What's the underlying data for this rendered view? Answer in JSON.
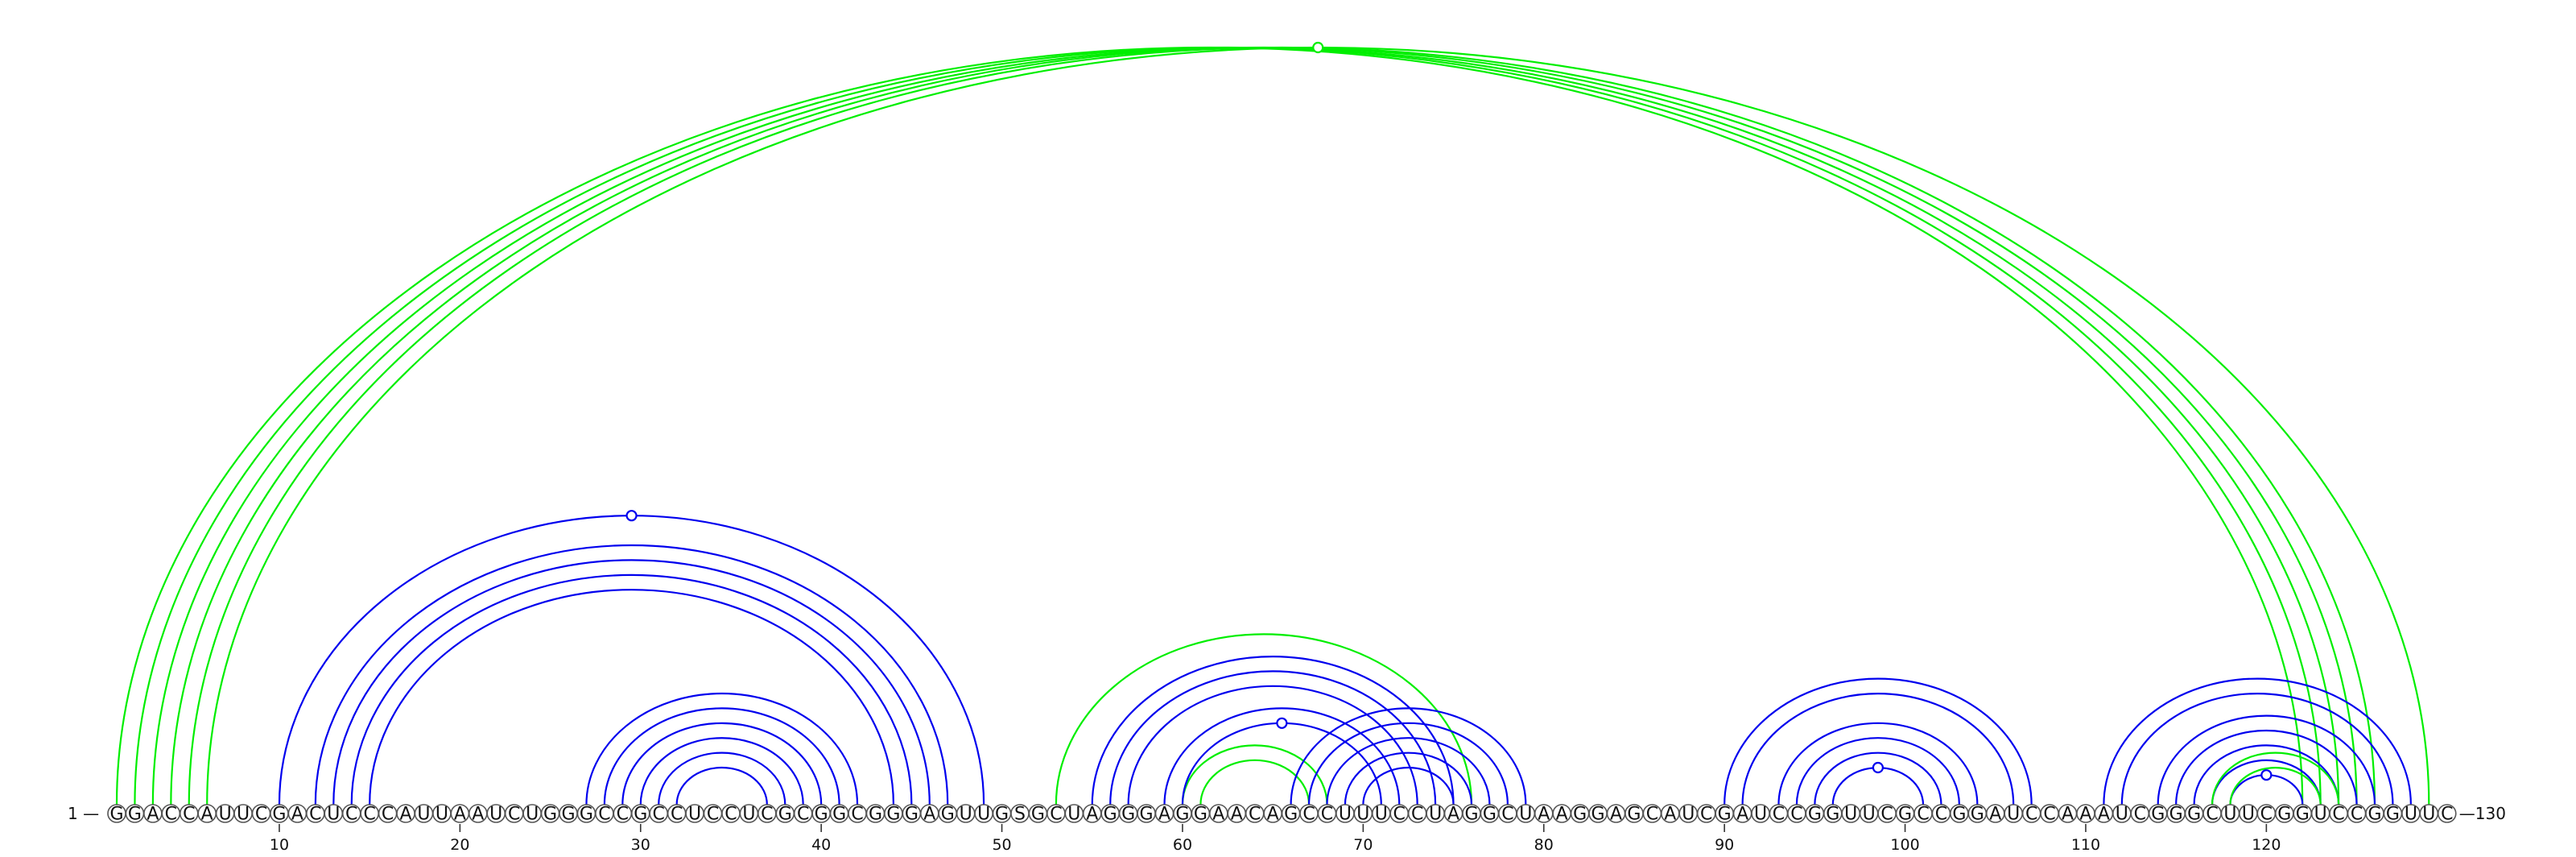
{
  "sequence": "GGACCAUUCGACUCCCAUUAAUCUGGGCCGCCUCCUCGCGGCGGGAGUUGSGCUAGGGAGGAACAGCCUUUCCUAGGCUAAGGAGCAUCGAUCCGGUUCGCCGGAUCCAAAUCGGGCUUCGGUCCGGUUC",
  "start_label": "1 —",
  "end_label": "—130",
  "ticks": [
    10,
    20,
    30,
    40,
    50,
    60,
    70,
    80,
    90,
    100,
    110,
    120
  ],
  "colors": {
    "structure_a": "#0000ee",
    "structure_b": "#00ee00",
    "circle_stroke": "#555555"
  },
  "arc_groups": [
    {
      "name": "long-range-helix",
      "color": "#00ee00",
      "pairs": [
        [
          1,
          122
        ],
        [
          2,
          123
        ],
        [
          3,
          124
        ],
        [
          4,
          125
        ],
        [
          5,
          126
        ],
        [
          6,
          129
        ]
      ],
      "marker_at_pair": 6
    },
    {
      "name": "left-outer-helix",
      "color": "#0000ee",
      "pairs": [
        [
          10,
          49
        ],
        [
          12,
          47
        ],
        [
          13,
          46
        ],
        [
          14,
          45
        ],
        [
          15,
          44
        ]
      ],
      "marker_at_pair": 1
    },
    {
      "name": "left-inner-helix",
      "color": "#0000ee",
      "pairs": [
        [
          27,
          42
        ],
        [
          28,
          41
        ],
        [
          29,
          40
        ],
        [
          30,
          39
        ],
        [
          31,
          38
        ],
        [
          32,
          37
        ]
      ],
      "marker_at_pair": null
    },
    {
      "name": "middle-green-outer",
      "color": "#00ee00",
      "pairs": [
        [
          53,
          76
        ]
      ],
      "marker_at_pair": null
    },
    {
      "name": "middle-green-inner",
      "color": "#00ee00",
      "pairs": [
        [
          60,
          68
        ],
        [
          61,
          67
        ]
      ],
      "marker_at_pair": null
    },
    {
      "name": "middle-blue-left",
      "color": "#0000ee",
      "pairs": [
        [
          55,
          75
        ],
        [
          56,
          74
        ],
        [
          57,
          73
        ],
        [
          59,
          72
        ],
        [
          60,
          71
        ]
      ],
      "marker_at_pair": 5
    },
    {
      "name": "middle-blue-right",
      "color": "#0000ee",
      "pairs": [
        [
          66,
          79
        ],
        [
          67,
          78
        ],
        [
          68,
          77
        ],
        [
          69,
          76
        ],
        [
          70,
          75
        ]
      ],
      "marker_at_pair": null
    },
    {
      "name": "right-hairpin-helix",
      "color": "#0000ee",
      "pairs": [
        [
          90,
          107
        ],
        [
          91,
          106
        ],
        [
          93,
          104
        ],
        [
          94,
          103
        ],
        [
          95,
          102
        ],
        [
          96,
          101
        ]
      ],
      "marker_at_pair": 6
    },
    {
      "name": "right-3prime-helix",
      "color": "#0000ee",
      "pairs": [
        [
          111,
          128
        ],
        [
          112,
          127
        ],
        [
          114,
          126
        ],
        [
          115,
          125
        ],
        [
          116,
          124
        ],
        [
          117,
          123
        ],
        [
          118,
          122
        ]
      ],
      "marker_at_pair": 7
    },
    {
      "name": "right-3prime-green",
      "color": "#00ee00",
      "pairs": [
        [
          117,
          124
        ],
        [
          118,
          123
        ]
      ],
      "marker_at_pair": null
    }
  ]
}
